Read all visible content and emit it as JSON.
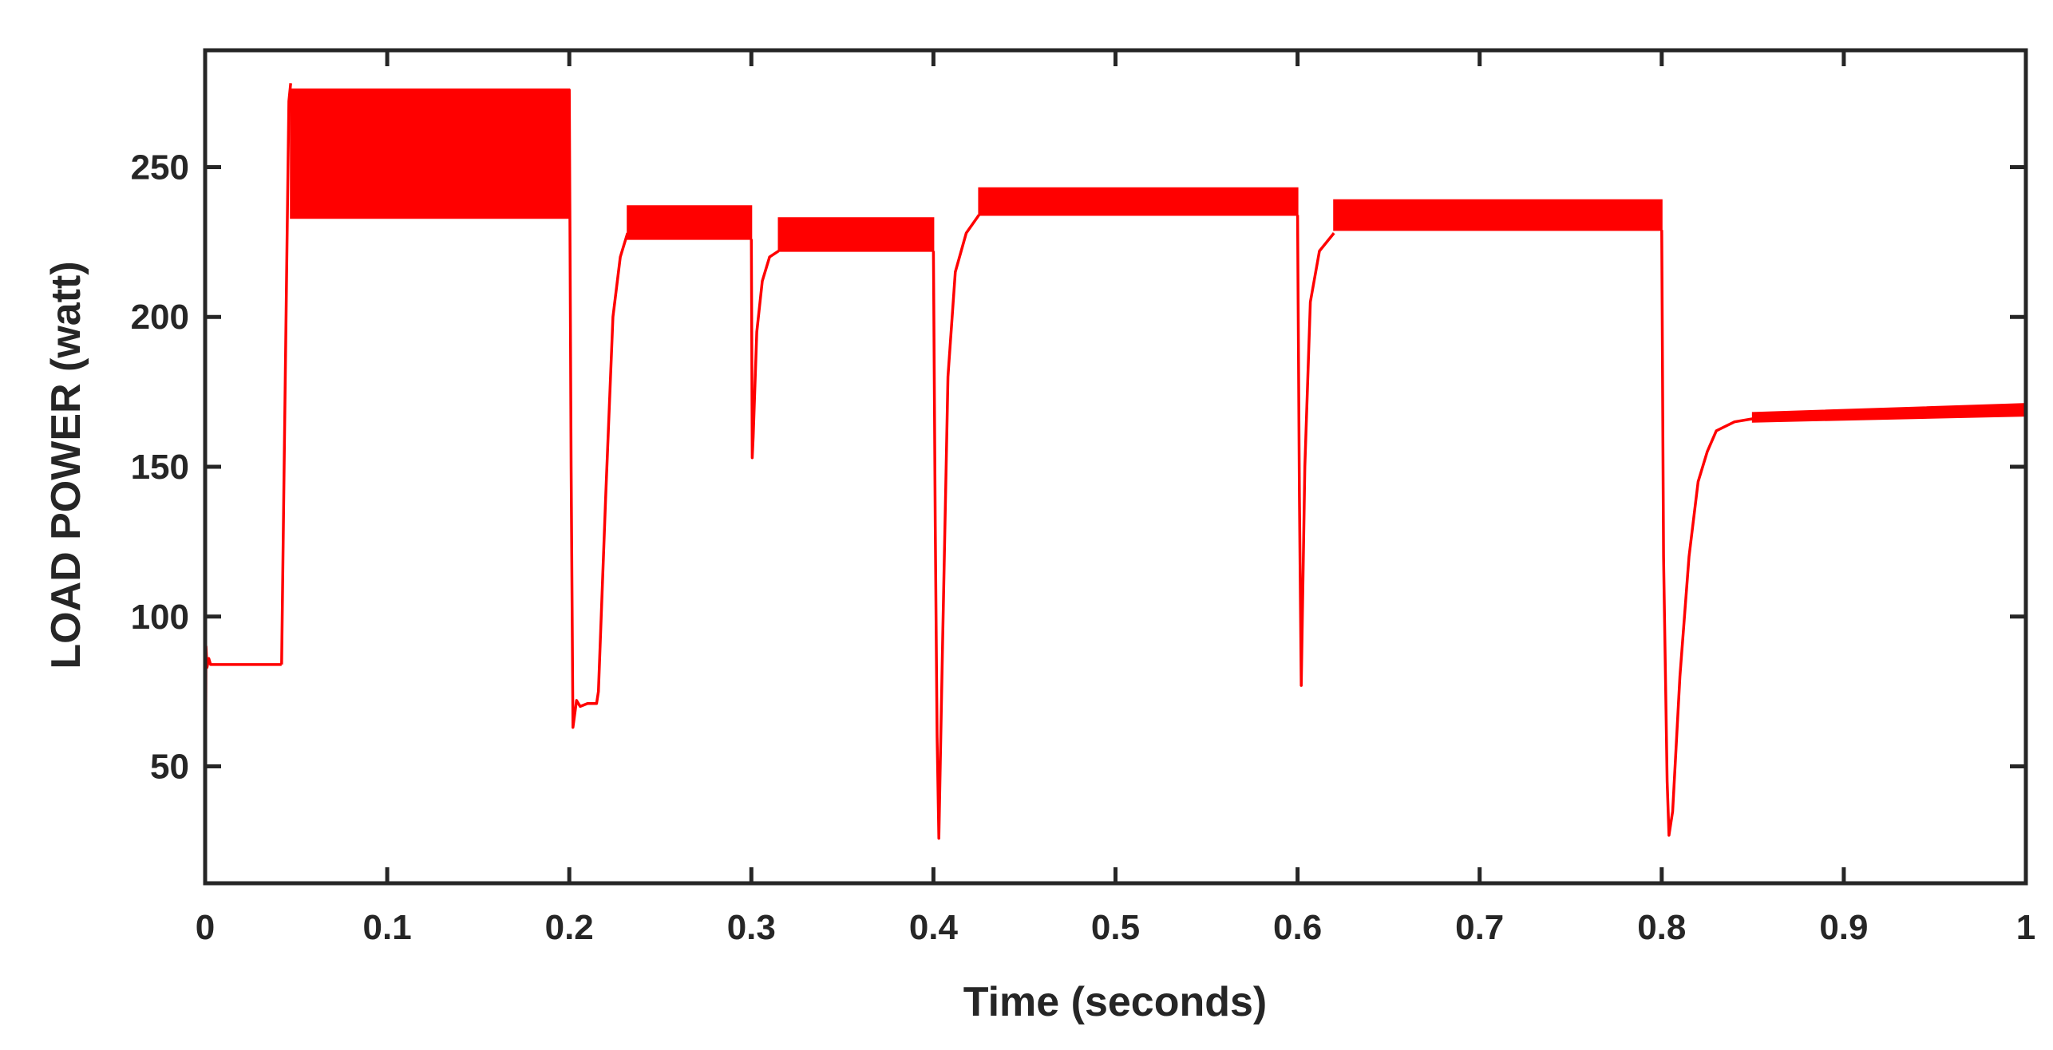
{
  "chart_data": {
    "type": "line",
    "title": "",
    "xlabel": "Time (seconds)",
    "ylabel": "LOAD POWER (watt)",
    "xlim": [
      0,
      1
    ],
    "ylim": [
      11,
      289
    ],
    "xticks": [
      0,
      0.1,
      0.2,
      0.3,
      0.4,
      0.5,
      0.6,
      0.7,
      0.8,
      0.9,
      1
    ],
    "xtick_labels": [
      "0",
      "0.1",
      "0.2",
      "0.3",
      "0.4",
      "0.5",
      "0.6",
      "0.7",
      "0.8",
      "0.9",
      "1"
    ],
    "yticks": [
      50,
      100,
      150,
      200,
      250
    ],
    "ytick_labels": [
      "50",
      "100",
      "150",
      "200",
      "250"
    ],
    "grid": false,
    "box": true,
    "series_color": "#ff0000",
    "axis_color": "#262626",
    "series": [
      {
        "segments": [
          {
            "x": [
              0,
              0.0005,
              0.001,
              0.002,
              0.003,
              0.005,
              0.01,
              0.02,
              0.03,
              0.04,
              0.042
            ],
            "y": [
              12,
              90,
              83,
              86,
              84,
              84,
              84,
              84,
              84,
              84,
              84
            ]
          },
          {
            "x": [
              0.042,
              0.044,
              0.046,
              0.047
            ],
            "y": [
              84,
              180,
              272,
              278
            ]
          },
          {
            "x": [
              0.047,
              0.2
            ],
            "y_low": 233,
            "y_high": 276,
            "band": true
          },
          {
            "x": [
              0.2,
              0.201,
              0.202,
              0.204,
              0.206,
              0.21,
              0.215,
              0.216,
              0.22,
              0.224,
              0.228,
              0.232
            ],
            "y": [
              276,
              150,
              63,
              72,
              70,
              71,
              71,
              75,
              140,
              200,
              220,
              228
            ]
          },
          {
            "x": [
              0.232,
              0.3
            ],
            "y_low": 226,
            "y_high": 237,
            "band": true
          },
          {
            "x": [
              0.3,
              0.3005,
              0.301,
              0.303,
              0.306,
              0.31,
              0.315
            ],
            "y": [
              226,
              153,
              160,
              195,
              212,
              220,
              222
            ]
          },
          {
            "x": [
              0.315,
              0.4
            ],
            "y_low": 222,
            "y_high": 233,
            "band": true
          },
          {
            "x": [
              0.4,
              0.401,
              0.402,
              0.403,
              0.405,
              0.408,
              0.412,
              0.418,
              0.425
            ],
            "y": [
              222,
              130,
              60,
              26,
              90,
              180,
              215,
              228,
              234
            ]
          },
          {
            "x": [
              0.425,
              0.6
            ],
            "y_low": 234,
            "y_high": 243,
            "band": true
          },
          {
            "x": [
              0.6,
              0.601,
              0.602,
              0.604,
              0.607,
              0.612,
              0.62
            ],
            "y": [
              234,
              140,
              77,
              150,
              205,
              222,
              228
            ]
          },
          {
            "x": [
              0.62,
              0.8
            ],
            "y_low": 229,
            "y_high": 239,
            "band": true
          },
          {
            "x": [
              0.8,
              0.801,
              0.803,
              0.804,
              0.806,
              0.81,
              0.815,
              0.82,
              0.825,
              0.83,
              0.84,
              0.85
            ],
            "y": [
              229,
              120,
              45,
              27,
              35,
              80,
              120,
              145,
              155,
              162,
              165,
              166
            ]
          },
          {
            "x": [
              0.85,
              1.0
            ],
            "y_low": [
              165,
              167
            ],
            "y_high": [
              168,
              171
            ],
            "band": true
          }
        ]
      }
    ]
  }
}
